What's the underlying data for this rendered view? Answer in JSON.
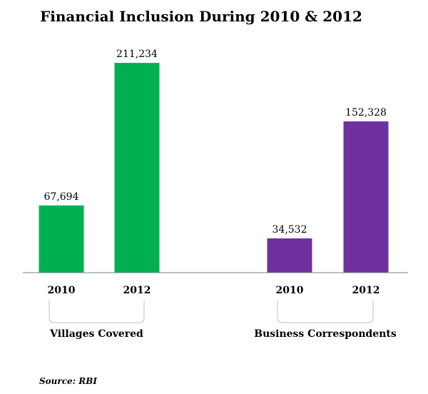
{
  "chart_data": {
    "type": "bar",
    "title": "Financial Inclusion During 2010 & 2012",
    "source": "Source: RBI",
    "ylim": [
      0,
      230000
    ],
    "groups": [
      {
        "label": "Villages Covered",
        "color": "#00b050",
        "categories": [
          "2010",
          "2012"
        ],
        "values": [
          67694,
          211234
        ],
        "value_labels": [
          "67,694",
          "211,234"
        ]
      },
      {
        "label": "Business Correspondents",
        "color": "#7030a0",
        "categories": [
          "2010",
          "2012"
        ],
        "values": [
          34532,
          152328
        ],
        "value_labels": [
          "34,532",
          "152,328"
        ]
      }
    ]
  }
}
